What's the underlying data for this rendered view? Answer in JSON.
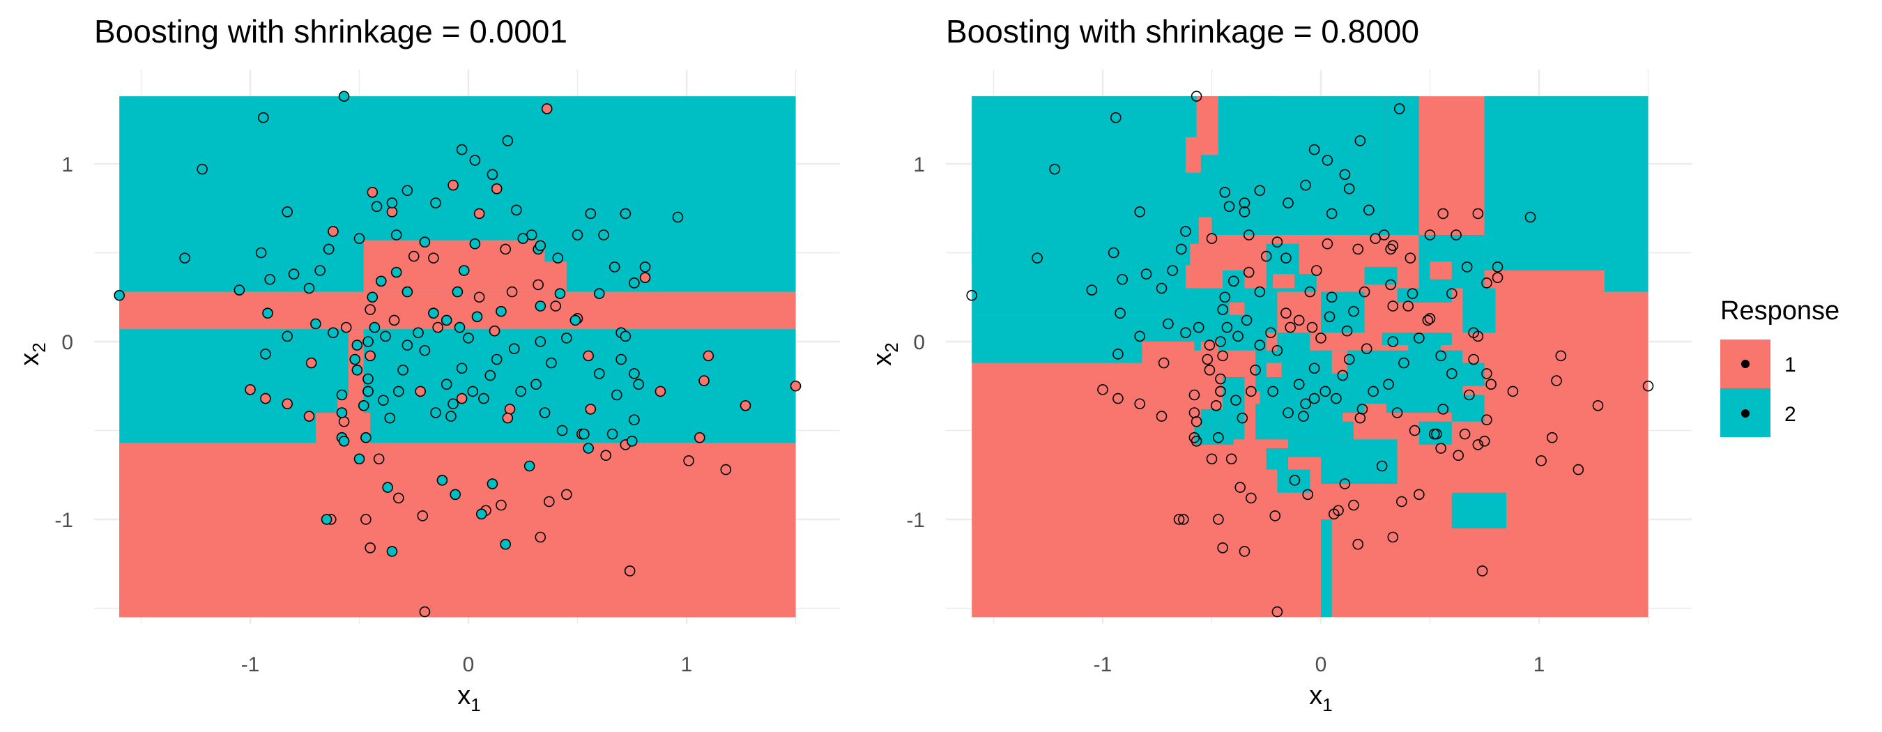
{
  "colors": {
    "class1": "#F8766D",
    "class2": "#00BFC4",
    "grid": "#ebebeb",
    "point_edge": "#000000"
  },
  "legend": {
    "title": "Response",
    "items": [
      {
        "label": "1",
        "color": "#F8766D"
      },
      {
        "label": "2",
        "color": "#00BFC4"
      }
    ],
    "placement": "right"
  },
  "chart_data": [
    {
      "type": "scatter",
      "title": "Boosting with shrinkage = 0.0001",
      "xlabel": "x",
      "xlabel_sub": "1",
      "ylabel": "x",
      "ylabel_sub": "2",
      "xlim": [
        -1.6,
        1.5
      ],
      "ylim": [
        -1.55,
        1.38
      ],
      "xticks": [
        -1,
        0,
        1
      ],
      "yticks": [
        -1,
        0,
        1
      ],
      "xtick_labels": [
        "-1",
        "0",
        "1"
      ],
      "ytick_labels": [
        "-1",
        "0",
        "1"
      ],
      "grid": true,
      "background": "decision regions (red = 1, teal = 2)",
      "series": [
        {
          "name": "1",
          "color": "#F8766D",
          "points": [
            [
              0.36,
              1.31
            ],
            [
              -0.44,
              0.84
            ],
            [
              -0.07,
              0.88
            ],
            [
              0.13,
              0.86
            ],
            [
              -0.62,
              0.62
            ],
            [
              -0.35,
              0.73
            ],
            [
              0.05,
              0.72
            ],
            [
              -0.25,
              0.48
            ],
            [
              -0.16,
              0.47
            ],
            [
              0.17,
              0.52
            ],
            [
              0.05,
              0.25
            ],
            [
              0.2,
              0.28
            ],
            [
              0.32,
              0.32
            ],
            [
              0.81,
              0.36
            ],
            [
              -0.56,
              0.08
            ],
            [
              -0.45,
              0.18
            ],
            [
              -0.34,
              0.12
            ],
            [
              -0.14,
              0.08
            ],
            [
              0.12,
              0.06
            ],
            [
              0.4,
              0.2
            ],
            [
              0.5,
              0.13
            ],
            [
              0.55,
              -0.08
            ],
            [
              -0.72,
              -0.12
            ],
            [
              -0.45,
              -0.08
            ],
            [
              -0.46,
              -0.28
            ],
            [
              -0.57,
              -0.45
            ],
            [
              -0.73,
              -0.42
            ],
            [
              -1.0,
              -0.27
            ],
            [
              -0.93,
              -0.32
            ],
            [
              -0.83,
              -0.35
            ],
            [
              -0.22,
              -0.28
            ],
            [
              -0.03,
              -0.32
            ],
            [
              0.19,
              -0.38
            ],
            [
              0.18,
              -0.43
            ],
            [
              0.56,
              -0.38
            ],
            [
              0.52,
              -0.52
            ],
            [
              0.88,
              -0.28
            ],
            [
              1.1,
              -0.08
            ],
            [
              1.08,
              -0.22
            ],
            [
              1.06,
              -0.54
            ],
            [
              1.27,
              -0.36
            ],
            [
              1.5,
              -0.25
            ],
            [
              0.63,
              -0.64
            ],
            [
              -0.41,
              -0.66
            ],
            [
              -0.32,
              -0.88
            ],
            [
              -0.47,
              -1.0
            ],
            [
              -0.45,
              -1.16
            ],
            [
              -0.63,
              -1.0
            ],
            [
              -0.21,
              -0.98
            ],
            [
              0.08,
              -0.95
            ],
            [
              0.15,
              -0.92
            ],
            [
              0.37,
              -0.9
            ],
            [
              0.45,
              -0.86
            ],
            [
              0.33,
              -1.1
            ],
            [
              -0.2,
              -1.52
            ],
            [
              0.74,
              -1.29
            ],
            [
              1.01,
              -0.67
            ],
            [
              1.18,
              -0.72
            ],
            [
              0.72,
              -0.58
            ]
          ]
        },
        {
          "name": "2",
          "color": "#00BFC4",
          "points": [
            [
              -0.57,
              1.38
            ],
            [
              -0.94,
              1.26
            ],
            [
              -1.22,
              0.97
            ],
            [
              -1.3,
              0.47
            ],
            [
              -1.6,
              0.26
            ],
            [
              -1.05,
              0.29
            ],
            [
              -0.92,
              0.16
            ],
            [
              -0.83,
              0.73
            ],
            [
              -0.95,
              0.5
            ],
            [
              -0.91,
              0.35
            ],
            [
              -0.83,
              0.03
            ],
            [
              -0.93,
              -0.07
            ],
            [
              -0.5,
              0.58
            ],
            [
              -0.42,
              0.76
            ],
            [
              -0.35,
              0.78
            ],
            [
              -0.28,
              0.85
            ],
            [
              -0.15,
              0.78
            ],
            [
              -0.03,
              1.08
            ],
            [
              0.03,
              1.02
            ],
            [
              0.11,
              0.94
            ],
            [
              0.18,
              1.13
            ],
            [
              0.22,
              0.74
            ],
            [
              0.29,
              0.6
            ],
            [
              0.25,
              0.58
            ],
            [
              0.32,
              0.52
            ],
            [
              0.41,
              0.47
            ],
            [
              0.56,
              0.72
            ],
            [
              0.72,
              0.72
            ],
            [
              0.5,
              0.6
            ],
            [
              0.62,
              0.6
            ],
            [
              0.67,
              0.42
            ],
            [
              0.76,
              0.33
            ],
            [
              0.96,
              0.7
            ],
            [
              0.81,
              0.42
            ],
            [
              0.42,
              0.27
            ],
            [
              0.6,
              0.27
            ],
            [
              0.33,
              0.2
            ],
            [
              0.49,
              0.12
            ],
            [
              0.45,
              0.02
            ],
            [
              0.7,
              0.05
            ],
            [
              0.72,
              0.03
            ],
            [
              0.7,
              -0.1
            ],
            [
              0.76,
              -0.18
            ],
            [
              0.78,
              -0.24
            ],
            [
              0.6,
              -0.18
            ],
            [
              0.68,
              -0.3
            ],
            [
              0.75,
              -0.56
            ],
            [
              0.53,
              -0.52
            ],
            [
              0.66,
              -0.52
            ],
            [
              0.43,
              -0.5
            ],
            [
              0.33,
              0.0
            ],
            [
              0.38,
              -0.12
            ],
            [
              0.31,
              -0.24
            ],
            [
              0.24,
              -0.28
            ],
            [
              0.21,
              -0.04
            ],
            [
              0.13,
              -0.1
            ],
            [
              0.1,
              -0.19
            ],
            [
              0.07,
              -0.32
            ],
            [
              0.02,
              -0.28
            ],
            [
              -0.07,
              -0.35
            ],
            [
              -0.1,
              -0.24
            ],
            [
              -0.03,
              -0.15
            ],
            [
              -0.04,
              0.08
            ],
            [
              0.0,
              0.02
            ],
            [
              0.04,
              0.14
            ],
            [
              -0.1,
              0.12
            ],
            [
              -0.16,
              0.16
            ],
            [
              -0.23,
              0.05
            ],
            [
              -0.2,
              -0.05
            ],
            [
              -0.28,
              -0.02
            ],
            [
              -0.3,
              -0.16
            ],
            [
              -0.32,
              -0.28
            ],
            [
              -0.36,
              -0.43
            ],
            [
              -0.39,
              -0.33
            ],
            [
              -0.46,
              -0.28
            ],
            [
              -0.46,
              -0.21
            ],
            [
              -0.48,
              -0.36
            ],
            [
              -0.58,
              -0.3
            ],
            [
              -0.58,
              -0.4
            ],
            [
              -0.58,
              -0.54
            ],
            [
              -0.5,
              -0.66
            ],
            [
              -0.47,
              -0.54
            ],
            [
              -0.38,
              0.03
            ],
            [
              -0.43,
              0.08
            ],
            [
              -0.46,
              0.0
            ],
            [
              -0.51,
              -0.02
            ],
            [
              -0.52,
              -0.1
            ],
            [
              -0.51,
              -0.16
            ],
            [
              -0.44,
              0.25
            ],
            [
              -0.4,
              0.34
            ],
            [
              -0.33,
              0.39
            ],
            [
              -0.28,
              0.28
            ],
            [
              -0.05,
              0.28
            ],
            [
              -0.02,
              0.4
            ],
            [
              0.03,
              0.55
            ],
            [
              -0.2,
              0.56
            ],
            [
              -0.33,
              0.6
            ],
            [
              -0.64,
              0.52
            ],
            [
              -0.68,
              0.4
            ],
            [
              -0.8,
              0.38
            ],
            [
              -0.73,
              0.3
            ],
            [
              -0.7,
              0.1
            ],
            [
              -0.62,
              0.05
            ],
            [
              0.15,
              0.17
            ],
            [
              0.33,
              0.54
            ],
            [
              0.35,
              -0.4
            ],
            [
              -0.15,
              -0.4
            ],
            [
              -0.08,
              -0.42
            ],
            [
              -0.12,
              -0.78
            ],
            [
              -0.37,
              -0.82
            ],
            [
              -0.57,
              -0.56
            ],
            [
              -0.65,
              -1.0
            ],
            [
              -0.35,
              -1.18
            ],
            [
              0.06,
              -0.97
            ],
            [
              0.17,
              -1.14
            ],
            [
              0.28,
              -0.7
            ],
            [
              0.11,
              -0.8
            ],
            [
              -0.06,
              -0.86
            ],
            [
              0.55,
              -0.6
            ],
            [
              0.76,
              -0.44
            ]
          ]
        }
      ]
    },
    {
      "type": "scatter",
      "title": "Boosting with shrinkage = 0.8000",
      "xlabel": "x",
      "xlabel_sub": "1",
      "ylabel": "x",
      "ylabel_sub": "2",
      "xlim": [
        -1.6,
        1.5
      ],
      "ylim": [
        -1.55,
        1.38
      ],
      "xticks": [
        -1,
        0,
        1
      ],
      "yticks": [
        -1,
        0,
        1
      ],
      "xtick_labels": [
        "-1",
        "0",
        "1"
      ],
      "ytick_labels": [
        "-1",
        "0",
        "1"
      ],
      "grid": true,
      "background": "decision regions (red = 1, teal = 2)",
      "series": [
        {
          "name": "same points as left panel",
          "color": "#ffffff",
          "points": "shared"
        }
      ]
    }
  ]
}
